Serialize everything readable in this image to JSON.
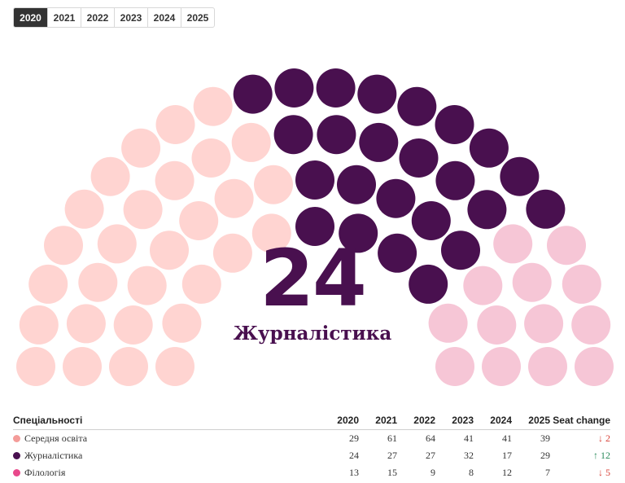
{
  "years": [
    "2020",
    "2021",
    "2022",
    "2023",
    "2024",
    "2025"
  ],
  "active_year": "2020",
  "highlight": {
    "value": "24",
    "label": "Журналістика"
  },
  "table": {
    "header_label": "Спеціальності",
    "change_header": "Seat change"
  },
  "chart_data": {
    "type": "parliament",
    "years": [
      "2020",
      "2021",
      "2022",
      "2023",
      "2024",
      "2025"
    ],
    "active_year": "2020",
    "series": [
      {
        "name": "Середня освіта",
        "color": "#f49c99",
        "seat_color": "#ffd4d1",
        "values": [
          29,
          61,
          64,
          41,
          41,
          39
        ],
        "change": "2",
        "direction": "down"
      },
      {
        "name": "Журналістика",
        "color": "#49104f",
        "seat_color": "#49104f",
        "values": [
          24,
          27,
          27,
          32,
          17,
          29
        ],
        "change": "12",
        "direction": "up"
      },
      {
        "name": "Філологія",
        "color": "#e8488b",
        "seat_color": "#f6c6d6",
        "values": [
          13,
          15,
          9,
          8,
          12,
          7
        ],
        "change": "5",
        "direction": "down"
      }
    ],
    "total_seats_2020": 66
  },
  "colors": {
    "up": "#2a8a5c",
    "down": "#d8433a",
    "accent": "#49104f"
  },
  "icons": {
    "up": "arrow-up-icon",
    "down": "arrow-down-icon"
  }
}
